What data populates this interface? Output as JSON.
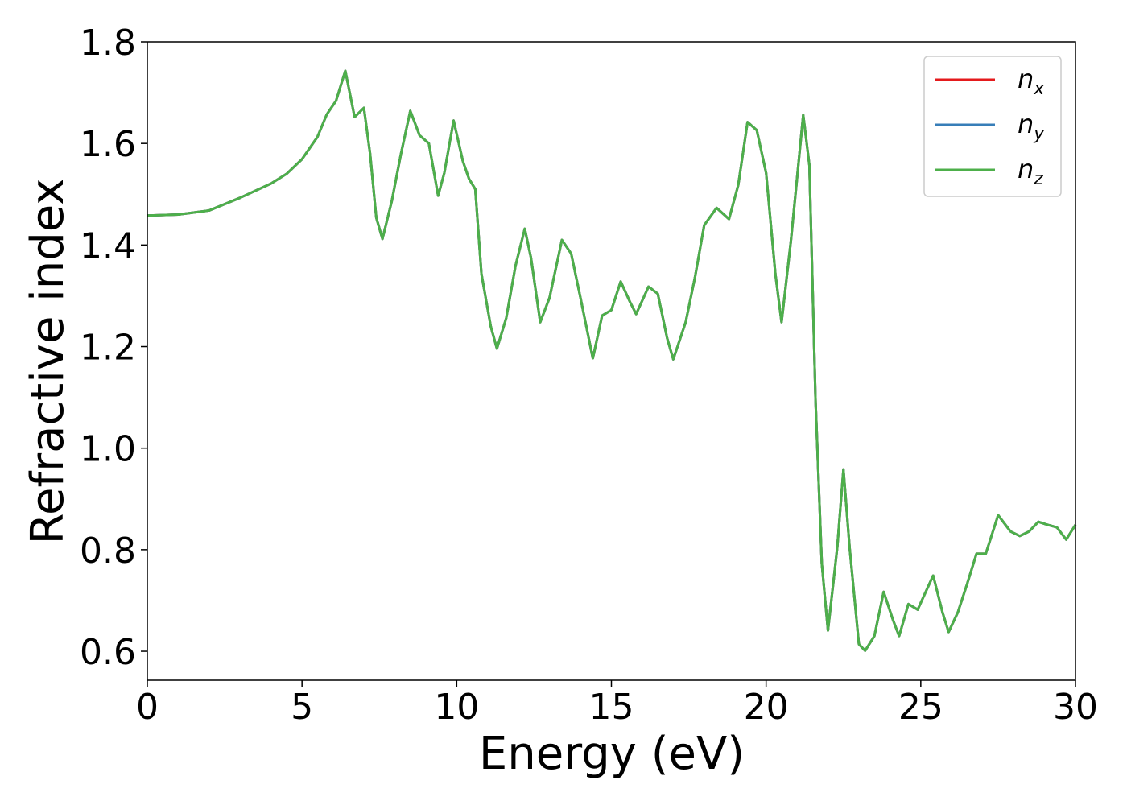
{
  "chart_data": {
    "type": "line",
    "xlabel": "Energy (eV)",
    "ylabel": "Refractive index",
    "x": [
      0,
      1,
      2,
      3,
      4,
      4.5,
      5,
      5.5,
      5.8,
      6.1,
      6.4,
      6.7,
      7.0,
      7.2,
      7.4,
      7.6,
      7.9,
      8.2,
      8.5,
      8.8,
      9.1,
      9.4,
      9.6,
      9.9,
      10.2,
      10.4,
      10.6,
      10.8,
      11.1,
      11.3,
      11.6,
      11.9,
      12.2,
      12.4,
      12.7,
      13.0,
      13.4,
      13.7,
      14.0,
      14.4,
      14.7,
      15.0,
      15.3,
      15.6,
      15.8,
      16.2,
      16.5,
      16.8,
      17.0,
      17.4,
      17.7,
      18.0,
      18.4,
      18.8,
      19.1,
      19.4,
      19.7,
      20.0,
      20.3,
      20.5,
      20.8,
      21.2,
      21.4,
      21.6,
      21.8,
      22.0,
      22.3,
      22.5,
      22.7,
      23.0,
      23.2,
      23.5,
      23.8,
      24.1,
      24.3,
      24.6,
      24.9,
      25.1,
      25.4,
      25.7,
      25.9,
      26.2,
      26.5,
      26.8,
      27.1,
      27.5,
      27.9,
      28.2,
      28.5,
      28.8,
      29.1,
      29.4,
      29.7,
      30.0
    ],
    "series": [
      {
        "name": "nx",
        "color": "#e41a1c",
        "values": [
          1.458,
          1.46,
          1.468,
          1.493,
          1.521,
          1.54,
          1.569,
          1.613,
          1.657,
          1.684,
          1.743,
          1.652,
          1.67,
          1.58,
          1.454,
          1.412,
          1.486,
          1.58,
          1.664,
          1.616,
          1.6,
          1.497,
          1.542,
          1.645,
          1.565,
          1.53,
          1.51,
          1.343,
          1.24,
          1.196,
          1.256,
          1.359,
          1.432,
          1.375,
          1.248,
          1.296,
          1.41,
          1.383,
          1.296,
          1.177,
          1.261,
          1.272,
          1.328,
          1.288,
          1.264,
          1.318,
          1.304,
          1.217,
          1.175,
          1.248,
          1.336,
          1.439,
          1.473,
          1.451,
          1.518,
          1.642,
          1.626,
          1.542,
          1.343,
          1.248,
          1.407,
          1.656,
          1.557,
          1.09,
          0.773,
          0.641,
          0.804,
          0.958,
          0.804,
          0.614,
          0.601,
          0.63,
          0.717,
          0.662,
          0.63,
          0.693,
          0.682,
          0.709,
          0.749,
          0.677,
          0.638,
          0.677,
          0.733,
          0.792,
          0.792,
          0.868,
          0.836,
          0.827,
          0.836,
          0.855,
          0.849,
          0.844,
          0.82,
          0.849
        ]
      },
      {
        "name": "ny",
        "color": "#377eb8",
        "values": [
          1.458,
          1.46,
          1.468,
          1.493,
          1.521,
          1.54,
          1.569,
          1.613,
          1.657,
          1.684,
          1.743,
          1.652,
          1.67,
          1.58,
          1.454,
          1.412,
          1.486,
          1.58,
          1.664,
          1.616,
          1.6,
          1.497,
          1.542,
          1.645,
          1.565,
          1.53,
          1.51,
          1.343,
          1.24,
          1.196,
          1.256,
          1.359,
          1.432,
          1.375,
          1.248,
          1.296,
          1.41,
          1.383,
          1.296,
          1.177,
          1.261,
          1.272,
          1.328,
          1.288,
          1.264,
          1.318,
          1.304,
          1.217,
          1.175,
          1.248,
          1.336,
          1.439,
          1.473,
          1.451,
          1.518,
          1.642,
          1.626,
          1.542,
          1.343,
          1.248,
          1.407,
          1.656,
          1.557,
          1.09,
          0.773,
          0.641,
          0.804,
          0.958,
          0.804,
          0.614,
          0.601,
          0.63,
          0.717,
          0.662,
          0.63,
          0.693,
          0.682,
          0.709,
          0.749,
          0.677,
          0.638,
          0.677,
          0.733,
          0.792,
          0.792,
          0.868,
          0.836,
          0.827,
          0.836,
          0.855,
          0.849,
          0.844,
          0.82,
          0.849
        ]
      },
      {
        "name": "nz",
        "color": "#4daf4a",
        "values": [
          1.458,
          1.46,
          1.468,
          1.493,
          1.521,
          1.54,
          1.569,
          1.613,
          1.657,
          1.684,
          1.743,
          1.652,
          1.67,
          1.58,
          1.454,
          1.412,
          1.486,
          1.58,
          1.664,
          1.616,
          1.6,
          1.497,
          1.542,
          1.645,
          1.565,
          1.53,
          1.51,
          1.343,
          1.24,
          1.196,
          1.256,
          1.359,
          1.432,
          1.375,
          1.248,
          1.296,
          1.41,
          1.383,
          1.296,
          1.177,
          1.261,
          1.272,
          1.328,
          1.288,
          1.264,
          1.318,
          1.304,
          1.217,
          1.175,
          1.248,
          1.336,
          1.439,
          1.473,
          1.451,
          1.518,
          1.642,
          1.626,
          1.542,
          1.343,
          1.248,
          1.407,
          1.656,
          1.557,
          1.09,
          0.773,
          0.641,
          0.804,
          0.958,
          0.804,
          0.614,
          0.601,
          0.63,
          0.717,
          0.662,
          0.63,
          0.693,
          0.682,
          0.709,
          0.749,
          0.677,
          0.638,
          0.677,
          0.733,
          0.792,
          0.792,
          0.868,
          0.836,
          0.827,
          0.836,
          0.855,
          0.849,
          0.844,
          0.82,
          0.849
        ]
      }
    ],
    "xlim": [
      0,
      30
    ],
    "xticks": [
      0,
      5,
      10,
      15,
      20,
      25,
      30
    ],
    "ylim": [
      0.543,
      1.8
    ],
    "yticks": [
      0.6,
      0.8,
      {
        "value": 1,
        "label": "1.0"
      },
      1.2,
      1.4,
      1.6,
      1.8
    ],
    "grid": false,
    "legend": "upper right"
  }
}
